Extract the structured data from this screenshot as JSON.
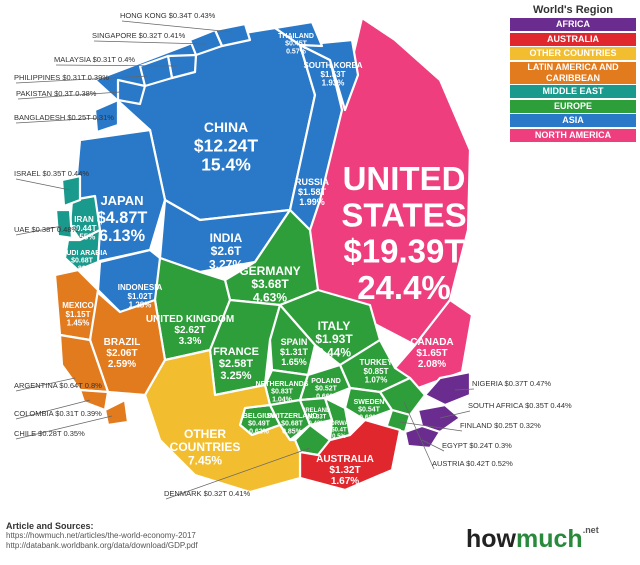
{
  "legend": {
    "title": "World's Region",
    "items": [
      {
        "label": "AFRICA",
        "color": "#6b2c8f"
      },
      {
        "label": "AUSTRALIA",
        "color": "#e0272e"
      },
      {
        "label": "OTHER COUNTRIES",
        "color": "#f2bd2f"
      },
      {
        "label": "LATIN AMERICA AND CARIBBEAN",
        "color": "#e27a1e"
      },
      {
        "label": "MIDDLE EAST",
        "color": "#1a9a8c"
      },
      {
        "label": "EUROPE",
        "color": "#2e9e3a"
      },
      {
        "label": "ASIA",
        "color": "#2a78c8"
      },
      {
        "label": "NORTH AMERICA",
        "color": "#ee3e7e"
      }
    ]
  },
  "chart_data": {
    "type": "voronoi-treemap",
    "unit": "T",
    "regions": [
      {
        "region": "NORTH AMERICA",
        "countries": [
          {
            "name": "UNITED STATES",
            "value": "$19.39T",
            "share": "24.4%"
          },
          {
            "name": "CANADA",
            "value": "$1.65T",
            "share": "2.08%"
          }
        ]
      },
      {
        "region": "ASIA",
        "countries": [
          {
            "name": "CHINA",
            "value": "$12.24T",
            "share": "15.4%"
          },
          {
            "name": "JAPAN",
            "value": "$4.87T",
            "share": "6.13%"
          },
          {
            "name": "INDIA",
            "value": "$2.6T",
            "share": "3.27%"
          },
          {
            "name": "RUSSIA",
            "value": "$1.58T",
            "share": "1.99%"
          },
          {
            "name": "SOUTH KOREA",
            "value": "$1.53T",
            "share": "1.93%"
          },
          {
            "name": "INDONESIA",
            "value": "$1.02T",
            "share": "1.28%"
          },
          {
            "name": "THAILAND",
            "value": "$0.45T",
            "share": "0.57%"
          },
          {
            "name": "HONG KONG",
            "value": "$0.34T",
            "share": "0.43%"
          },
          {
            "name": "SINGAPORE",
            "value": "$0.32T",
            "share": "0.41%"
          },
          {
            "name": "MALAYSIA",
            "value": "$0.31T",
            "share": "0.4%"
          },
          {
            "name": "PHILIPPINES",
            "value": "$0.31T",
            "share": "0.39%"
          },
          {
            "name": "PAKISTAN",
            "value": "$0.3T",
            "share": "0.38%"
          },
          {
            "name": "BANGLADESH",
            "value": "$0.25T",
            "share": "0.31%"
          }
        ]
      },
      {
        "region": "EUROPE",
        "countries": [
          {
            "name": "GERMANY",
            "value": "$3.68T",
            "share": "4.63%"
          },
          {
            "name": "UNITED KINGDOM",
            "value": "$2.62T",
            "share": "3.3%"
          },
          {
            "name": "FRANCE",
            "value": "$2.58T",
            "share": "3.25%"
          },
          {
            "name": "ITALY",
            "value": "$1.93T",
            "share": "2.44%"
          },
          {
            "name": "SPAIN",
            "value": "$1.31T",
            "share": "1.65%"
          },
          {
            "name": "TURKEY",
            "value": "$0.85T",
            "share": "1.07%"
          },
          {
            "name": "NETHERLANDS",
            "value": "$0.83T",
            "share": "1.04%"
          },
          {
            "name": "SWITZERLAND",
            "value": "$0.68T",
            "share": "0.85%"
          },
          {
            "name": "POLAND",
            "value": "$0.52T",
            "share": "0.66%"
          },
          {
            "name": "SWEDEN",
            "value": "$0.54T",
            "share": "0.68%"
          },
          {
            "name": "BELGIUM",
            "value": "$0.49T",
            "share": "0.62%"
          },
          {
            "name": "AUSTRIA",
            "value": "$0.42T",
            "share": "0.52%"
          },
          {
            "name": "NORWAY",
            "value": "$0.4T",
            "share": "0.5%"
          },
          {
            "name": "IRELAND",
            "value": "$0.33T",
            "share": "0.42%"
          },
          {
            "name": "DENMARK",
            "value": "$0.32T",
            "share": "0.41%"
          },
          {
            "name": "FINLAND",
            "value": "$0.25T",
            "share": "0.32%"
          }
        ]
      },
      {
        "region": "MIDDLE EAST",
        "countries": [
          {
            "name": "IRAN",
            "value": "$0.44T",
            "share": "0.55%"
          },
          {
            "name": "SAUDI ARABIA",
            "value": "$0.68T",
            "share": "0.86%"
          },
          {
            "name": "ISRAEL",
            "value": "$0.35T",
            "share": "0.44%"
          },
          {
            "name": "UAE",
            "value": "$0.38T",
            "share": "0.48%"
          }
        ]
      },
      {
        "region": "LATIN AMERICA AND CARIBBEAN",
        "countries": [
          {
            "name": "BRAZIL",
            "value": "$2.06T",
            "share": "2.59%"
          },
          {
            "name": "MEXICO",
            "value": "$1.15T",
            "share": "1.45%"
          },
          {
            "name": "ARGENTINA",
            "value": "$0.64T",
            "share": "0.8%"
          },
          {
            "name": "COLOMBIA",
            "value": "$0.31T",
            "share": "0.39%"
          },
          {
            "name": "CHILE",
            "value": "$0.28T",
            "share": "0.35%"
          }
        ]
      },
      {
        "region": "AFRICA",
        "countries": [
          {
            "name": "NIGERIA",
            "value": "$0.37T",
            "share": "0.47%"
          },
          {
            "name": "SOUTH AFRICA",
            "value": "$0.35T",
            "share": "0.44%"
          },
          {
            "name": "EGYPT",
            "value": "$0.24T",
            "share": "0.3%"
          }
        ]
      },
      {
        "region": "AUSTRALIA",
        "countries": [
          {
            "name": "AUSTRALIA",
            "value": "$1.32T",
            "share": "1.67%"
          }
        ]
      },
      {
        "region": "OTHER COUNTRIES",
        "countries": [
          {
            "name": "OTHER COUNTRIES",
            "value": "",
            "share": "7.45%"
          }
        ]
      }
    ]
  },
  "sources": {
    "heading": "Article and Sources:",
    "line1": "https://howmuch.net/articles/the-world-economy-2017",
    "line2": "http://databank.worldbank.org/data/download/GDP.pdf"
  },
  "brand": {
    "how": "how",
    "much": "much",
    "net": ".net"
  }
}
